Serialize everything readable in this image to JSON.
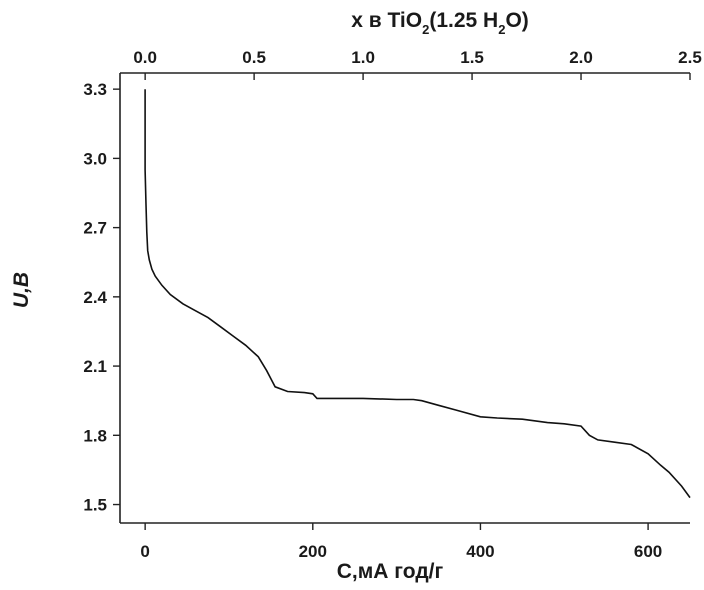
{
  "chart_data": {
    "type": "line",
    "xlabel": "C,мА год/г",
    "ylabel": "U,B",
    "top_xlabel_parts": [
      "x в TiO",
      "2",
      "(1.25 H",
      "2",
      "O)"
    ],
    "xlim": [
      -30,
      650
    ],
    "ylim": [
      1.42,
      3.37
    ],
    "xticks": [
      0,
      200,
      400,
      600
    ],
    "yticks": [
      1.5,
      1.8,
      2.1,
      2.4,
      2.7,
      3.0,
      3.3
    ],
    "ytick_labels": [
      "1.5",
      "1.8",
      "2.1",
      "2.4",
      "2.7",
      "3.0",
      "3.3"
    ],
    "top_axis": {
      "scale_capacity_per_unit": 260,
      "ticks": [
        0.0,
        0.5,
        1.0,
        1.5,
        2.0,
        2.5
      ],
      "tick_labels": [
        "0.0",
        "0.5",
        "1.0",
        "1.5",
        "2.0",
        "2.5"
      ]
    },
    "grid": false,
    "series": [
      {
        "x": [
          0,
          0,
          1,
          2,
          3,
          5,
          8,
          12,
          20,
          30,
          45,
          60,
          75,
          90,
          105,
          120,
          135,
          145,
          155,
          170,
          190,
          200,
          205,
          230,
          260,
          300,
          320,
          330,
          350,
          370,
          400,
          420,
          450,
          480,
          500,
          520,
          530,
          540,
          560,
          580,
          600,
          615,
          625,
          640,
          650
        ],
        "y": [
          3.3,
          2.95,
          2.8,
          2.68,
          2.6,
          2.56,
          2.52,
          2.49,
          2.45,
          2.41,
          2.37,
          2.34,
          2.31,
          2.27,
          2.23,
          2.19,
          2.14,
          2.08,
          2.01,
          1.99,
          1.985,
          1.98,
          1.96,
          1.96,
          1.96,
          1.955,
          1.955,
          1.95,
          1.93,
          1.91,
          1.88,
          1.875,
          1.87,
          1.855,
          1.85,
          1.84,
          1.8,
          1.78,
          1.77,
          1.76,
          1.72,
          1.67,
          1.64,
          1.58,
          1.53
        ]
      }
    ]
  }
}
